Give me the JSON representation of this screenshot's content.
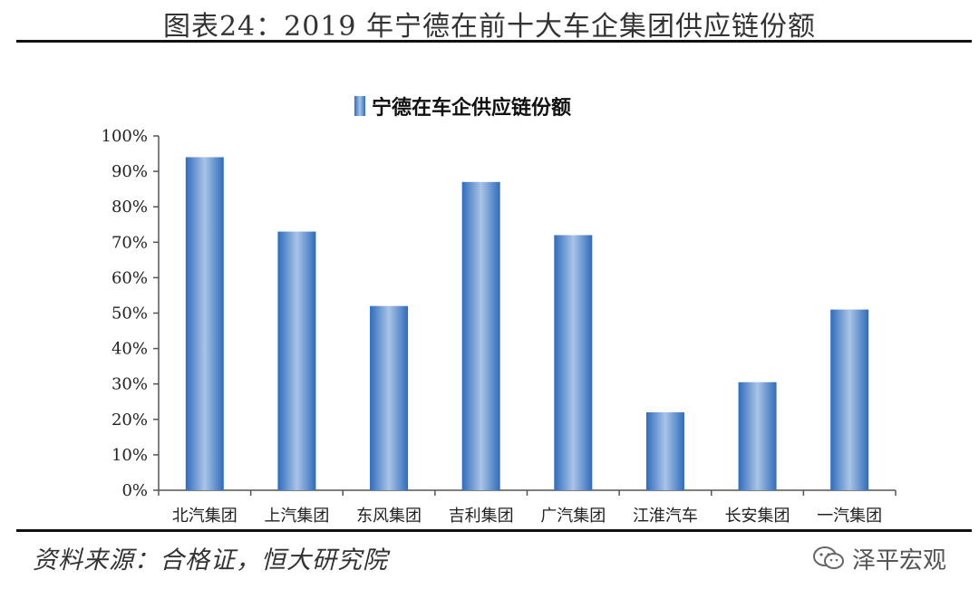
{
  "figure": {
    "title": "图表24：2019 年宁德在前十大车企集团供应链份额",
    "source": "资料来源：合格证，恒大研究院",
    "watermark": "泽平宏观",
    "watermark_icon": "wechat-icon"
  },
  "colors": {
    "bar_edge": "#2f6cbd",
    "bar_center": "#a9c4e6",
    "axis": "#555555"
  },
  "chart_data": {
    "type": "bar",
    "title": "",
    "xlabel": "",
    "ylabel": "",
    "categories": [
      "北汽集团",
      "上汽集团",
      "东风集团",
      "吉利集团",
      "广汽集团",
      "江淮汽车",
      "长安集团",
      "一汽集团"
    ],
    "series": [
      {
        "name": "宁德在车企供应链份额",
        "values": [
          94,
          73,
          52,
          87,
          72,
          22,
          30.5,
          51
        ]
      }
    ],
    "ylim": [
      0,
      100
    ],
    "yticks": [
      "0%",
      "10%",
      "20%",
      "30%",
      "40%",
      "50%",
      "60%",
      "70%",
      "80%",
      "90%",
      "100%"
    ],
    "grid": false,
    "legend": "top-center"
  }
}
